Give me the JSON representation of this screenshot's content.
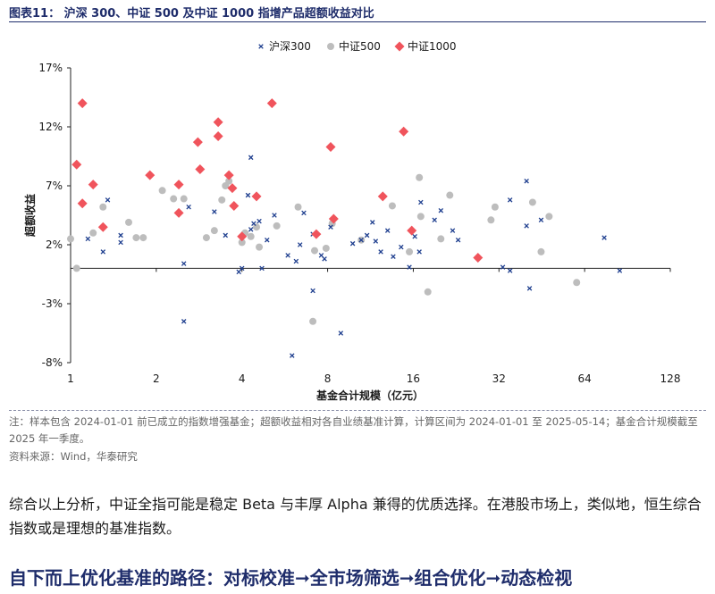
{
  "figure_title": "图表11：  沪深 300、中证 500 及中证 1000 指增产品超额收益对比",
  "note": "注：样本包含 2024-01-01 前已成立的指数增强基金；超额收益相对各自业绩基准计算，计算区间为 2024-01-01 至 2025-05-14；基金合计规模截至 2025 年一季度。",
  "source": "资料来源：Wind，华泰研究",
  "body_text": "综合以上分析，中证全指可能是稳定 Beta 与丰厚 Alpha 兼得的优质选择。在港股市场上，类似地，恒生综合指数或是理想的基准指数。",
  "section_heading": "自下而上优化基准的路径：对标校准➞全市场筛选➞组合优化➞动态检视",
  "colors": {
    "hs300": "#1f3f8f",
    "zz500": "#bdbdbd",
    "zz1000": "#f0545c",
    "title": "#1f2d6b"
  },
  "chart_data": {
    "type": "scatter",
    "title": "",
    "xlabel": "基金合计规模（亿元）",
    "ylabel": "超额收益",
    "x_scale": "log2",
    "xlim": [
      1,
      128
    ],
    "ylim": [
      -0.08,
      0.17
    ],
    "x_ticks": [
      1,
      2,
      4,
      8,
      16,
      32,
      64,
      128
    ],
    "x_tick_labels": [
      "1",
      "2",
      "4",
      "8",
      "16",
      "32",
      "64",
      "128"
    ],
    "y_ticks": [
      -0.08,
      -0.03,
      0.02,
      0.07,
      0.12,
      0.17
    ],
    "y_tick_labels": [
      "-8%",
      "-3%",
      "2%",
      "7%",
      "12%",
      "17%"
    ],
    "grid": false,
    "legend_position": "top-center",
    "series": [
      {
        "name": "沪深300",
        "marker": "x",
        "points": [
          [
            1.15,
            0.025
          ],
          [
            1.3,
            0.014
          ],
          [
            1.35,
            0.058
          ],
          [
            1.5,
            0.022
          ],
          [
            1.5,
            0.028
          ],
          [
            2.5,
            -0.045
          ],
          [
            2.5,
            0.004
          ],
          [
            2.6,
            0.052
          ],
          [
            3.2,
            0.048
          ],
          [
            3.5,
            0.028
          ],
          [
            3.9,
            -0.003
          ],
          [
            4.0,
            0.0
          ],
          [
            4.2,
            0.062
          ],
          [
            4.3,
            0.094
          ],
          [
            4.3,
            0.033
          ],
          [
            4.4,
            0.038
          ],
          [
            4.6,
            0.04
          ],
          [
            4.7,
            0.0
          ],
          [
            4.9,
            0.024
          ],
          [
            5.2,
            0.045
          ],
          [
            5.8,
            0.011
          ],
          [
            6.0,
            -0.074
          ],
          [
            6.2,
            0.006
          ],
          [
            6.4,
            0.02
          ],
          [
            6.6,
            0.047
          ],
          [
            7.1,
            -0.019
          ],
          [
            7.1,
            0.029
          ],
          [
            7.6,
            0.011
          ],
          [
            7.8,
            0.008
          ],
          [
            8.2,
            0.035
          ],
          [
            8.9,
            -0.055
          ],
          [
            9.8,
            0.021
          ],
          [
            10.5,
            0.024
          ],
          [
            11.0,
            0.028
          ],
          [
            11.5,
            0.039
          ],
          [
            11.8,
            0.023
          ],
          [
            12.3,
            0.014
          ],
          [
            13.0,
            0.032
          ],
          [
            13.6,
            0.01
          ],
          [
            14.5,
            0.018
          ],
          [
            15.5,
            0.001
          ],
          [
            16.2,
            0.027
          ],
          [
            16.8,
            0.014
          ],
          [
            17.0,
            0.056
          ],
          [
            19.0,
            0.041
          ],
          [
            20.0,
            0.049
          ],
          [
            22.0,
            0.032
          ],
          [
            23.0,
            0.024
          ],
          [
            33.0,
            0.001
          ],
          [
            35.0,
            0.058
          ],
          [
            35.0,
            -0.002
          ],
          [
            40.0,
            0.074
          ],
          [
            40.0,
            0.036
          ],
          [
            41.0,
            -0.017
          ],
          [
            45.0,
            0.041
          ],
          [
            75.0,
            0.026
          ],
          [
            85.0,
            -0.002
          ]
        ]
      },
      {
        "name": "中证500",
        "marker": "circle",
        "points": [
          [
            1.0,
            0.025
          ],
          [
            1.05,
            0.0
          ],
          [
            1.2,
            0.03
          ],
          [
            1.3,
            0.052
          ],
          [
            1.6,
            0.039
          ],
          [
            1.7,
            0.026
          ],
          [
            1.8,
            0.026
          ],
          [
            2.1,
            0.066
          ],
          [
            2.3,
            0.059
          ],
          [
            2.5,
            0.059
          ],
          [
            3.0,
            0.026
          ],
          [
            3.2,
            0.032
          ],
          [
            3.4,
            0.058
          ],
          [
            3.5,
            0.07
          ],
          [
            3.6,
            0.074
          ],
          [
            4.0,
            0.022
          ],
          [
            4.1,
            0.03
          ],
          [
            4.3,
            0.027
          ],
          [
            4.5,
            0.035
          ],
          [
            4.6,
            0.018
          ],
          [
            5.3,
            0.036
          ],
          [
            6.3,
            0.052
          ],
          [
            7.1,
            -0.045
          ],
          [
            7.2,
            0.015
          ],
          [
            7.9,
            0.017
          ],
          [
            8.3,
            0.038
          ],
          [
            10.5,
            0.024
          ],
          [
            13.5,
            0.053
          ],
          [
            15.5,
            0.014
          ],
          [
            16.8,
            0.077
          ],
          [
            17.0,
            0.044
          ],
          [
            18.0,
            -0.02
          ],
          [
            20.0,
            0.025
          ],
          [
            21.5,
            0.062
          ],
          [
            30.0,
            0.041
          ],
          [
            31.0,
            0.052
          ],
          [
            42.0,
            0.056
          ],
          [
            45.0,
            0.014
          ],
          [
            48.0,
            0.044
          ],
          [
            60.0,
            -0.012
          ]
        ]
      },
      {
        "name": "中证1000",
        "marker": "diamond",
        "points": [
          [
            1.05,
            0.088
          ],
          [
            1.1,
            0.14
          ],
          [
            1.1,
            0.055
          ],
          [
            1.2,
            0.071
          ],
          [
            1.3,
            0.035
          ],
          [
            1.9,
            0.079
          ],
          [
            2.4,
            0.047
          ],
          [
            2.4,
            0.071
          ],
          [
            2.8,
            0.107
          ],
          [
            2.85,
            0.084
          ],
          [
            3.3,
            0.124
          ],
          [
            3.3,
            0.112
          ],
          [
            3.6,
            0.079
          ],
          [
            3.7,
            0.068
          ],
          [
            3.75,
            0.053
          ],
          [
            4.0,
            0.027
          ],
          [
            4.5,
            0.061
          ],
          [
            5.1,
            0.14
          ],
          [
            7.3,
            0.029
          ],
          [
            8.2,
            0.103
          ],
          [
            8.4,
            0.042
          ],
          [
            12.5,
            0.061
          ],
          [
            14.8,
            0.116
          ],
          [
            15.8,
            0.032
          ],
          [
            27.0,
            0.009
          ]
        ]
      }
    ]
  }
}
